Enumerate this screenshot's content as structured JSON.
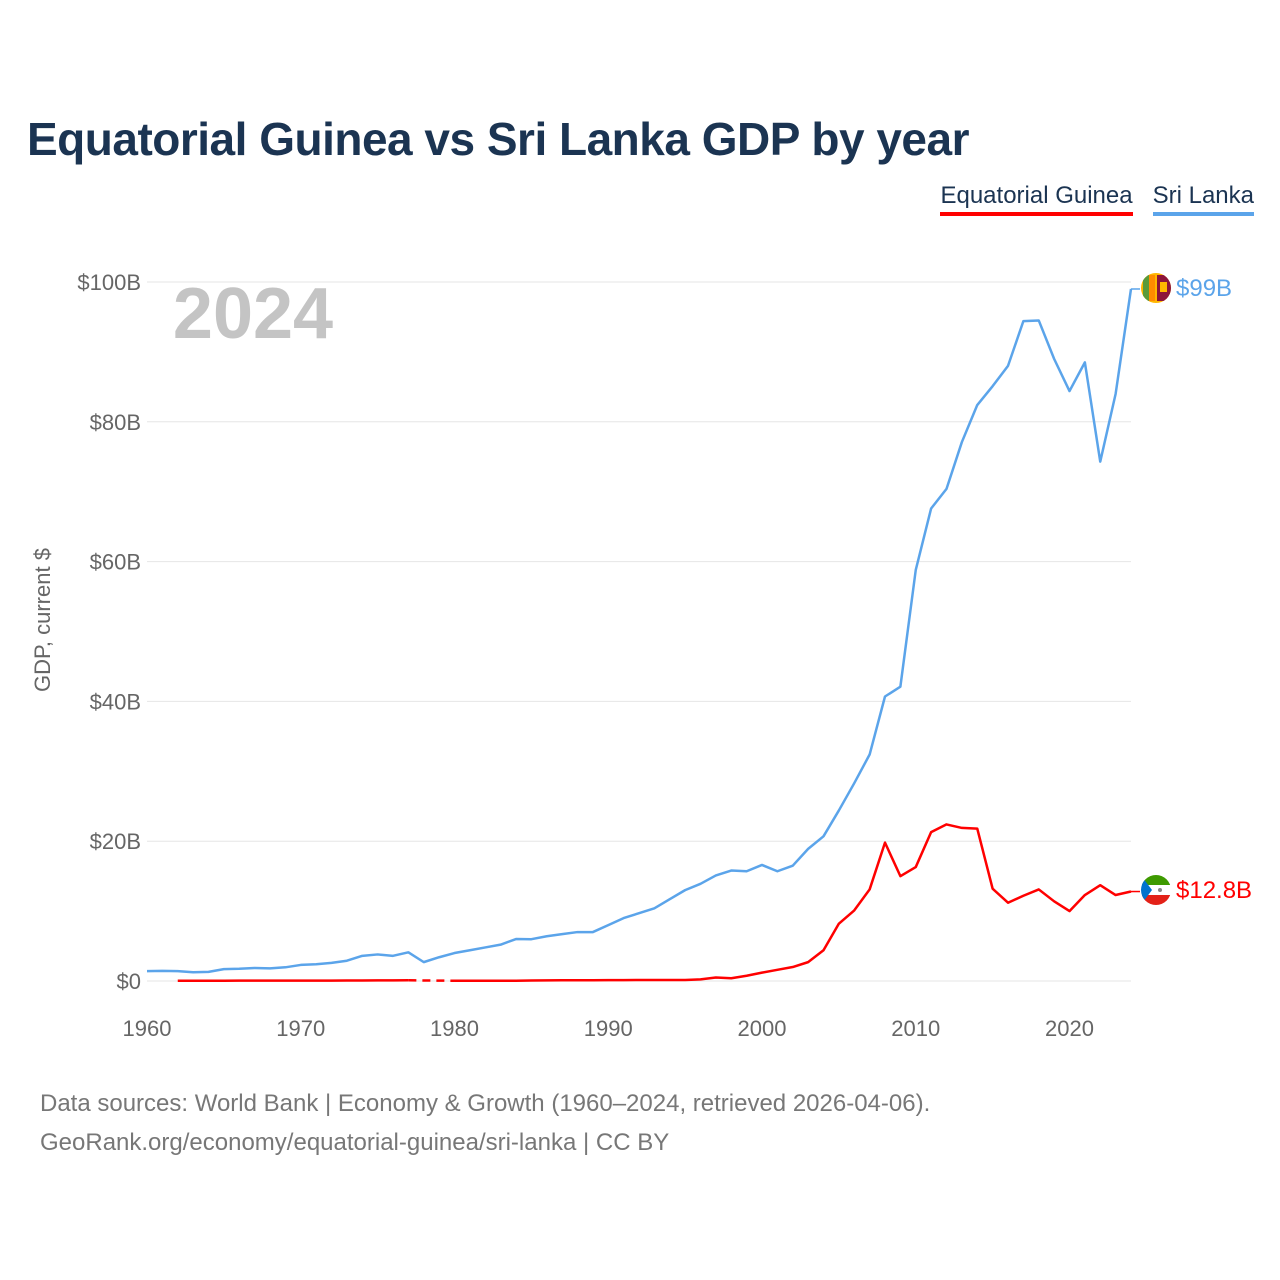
{
  "title": "Equatorial Guinea vs Sri Lanka GDP by year",
  "legend": {
    "eg": "Equatorial Guinea",
    "sl": "Sri Lanka"
  },
  "year_label": "2024",
  "end_labels": {
    "sl": "$99B",
    "eg": "$12.8B"
  },
  "footer": {
    "line1": "Data sources: World Bank | Economy & Growth (1960–2024, retrieved 2026-04-06).",
    "line2": "GeoRank.org/economy/equatorial-guinea/sri-lanka | CC BY"
  },
  "colors": {
    "eg": "#ff0000",
    "sl": "#5ba4ea"
  },
  "chart_data": {
    "type": "line",
    "title": "Equatorial Guinea vs Sri Lanka GDP by year",
    "xlabel": "",
    "ylabel": "GDP, current $",
    "xlim": [
      1960,
      2024
    ],
    "ylim": [
      0,
      100
    ],
    "x_ticks": [
      1960,
      1970,
      1980,
      1990,
      2000,
      2010,
      2020
    ],
    "y_ticks": [
      {
        "v": 0,
        "label": "$0"
      },
      {
        "v": 20,
        "label": "$20B"
      },
      {
        "v": 40,
        "label": "$40B"
      },
      {
        "v": 60,
        "label": "$60B"
      },
      {
        "v": 80,
        "label": "$80B"
      },
      {
        "v": 100,
        "label": "$100B"
      }
    ],
    "x_start": 1960,
    "series": [
      {
        "name": "Sri Lanka",
        "color": "#5ba4ea",
        "values": [
          1.41,
          1.45,
          1.42,
          1.26,
          1.3,
          1.7,
          1.75,
          1.86,
          1.8,
          1.96,
          2.3,
          2.4,
          2.6,
          2.9,
          3.6,
          3.8,
          3.6,
          4.1,
          2.7,
          3.4,
          4.0,
          4.4,
          4.8,
          5.2,
          6.0,
          5.98,
          6.4,
          6.7,
          7.0,
          7.0,
          8.0,
          9.0,
          9.7,
          10.4,
          11.7,
          13.0,
          13.9,
          15.1,
          15.8,
          15.7,
          16.6,
          15.7,
          16.5,
          18.9,
          20.7,
          24.4,
          28.3,
          32.4,
          40.7,
          42.1,
          58.8,
          67.6,
          70.4,
          77.1,
          82.4,
          85.1,
          88.0,
          94.4,
          94.5,
          89.0,
          84.4,
          88.5,
          74.3,
          84.0,
          99.0
        ]
      },
      {
        "name": "Equatorial Guinea",
        "color": "#ff0000",
        "values": [
          null,
          null,
          0.03,
          0.03,
          0.04,
          0.04,
          0.05,
          0.05,
          0.05,
          0.05,
          0.05,
          0.06,
          0.06,
          0.07,
          0.08,
          0.09,
          0.09,
          0.1,
          null,
          null,
          0.03,
          0.03,
          0.03,
          0.04,
          0.04,
          0.08,
          0.09,
          0.1,
          0.1,
          0.1,
          0.13,
          0.13,
          0.15,
          0.15,
          0.14,
          0.14,
          0.23,
          0.5,
          0.4,
          0.75,
          1.2,
          1.6,
          2.0,
          2.7,
          4.4,
          8.2,
          10.1,
          13.1,
          19.8,
          15.0,
          16.3,
          21.3,
          22.4,
          21.9,
          21.8,
          13.2,
          11.2,
          12.2,
          13.1,
          11.4,
          10.0,
          12.3,
          13.7,
          12.3,
          12.8
        ]
      }
    ]
  }
}
